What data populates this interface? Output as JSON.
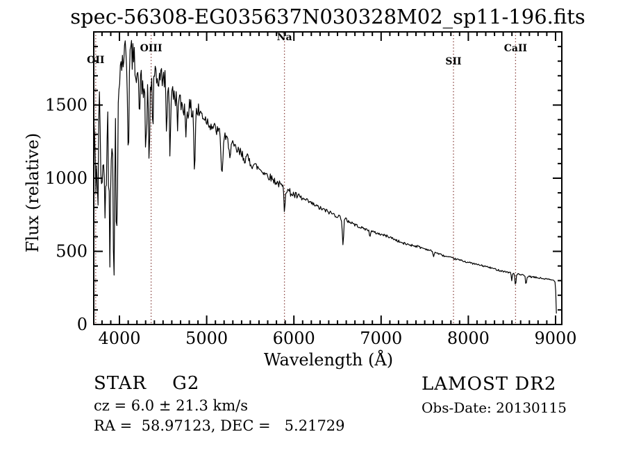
{
  "page": {
    "background": "#ffffff",
    "foreground": "#000000"
  },
  "chart_data": {
    "type": "line",
    "title": "spec-56308-EG035637N030328M02_sp11-196.fits",
    "xlabel": "Wavelength (Å)",
    "ylabel": "Flux (relative)",
    "xlim": [
      3705,
      9072
    ],
    "ylim": [
      0,
      2000
    ],
    "grid": false,
    "legend": "none",
    "line_color": "#000000",
    "marker_line_color": "#8b4743",
    "xticks_major": [
      4000,
      5000,
      6000,
      7000,
      8000,
      9000
    ],
    "xtick_labels": [
      "4000",
      "5000",
      "6000",
      "7000",
      "8000",
      "9000"
    ],
    "xticks_minor_step": 100,
    "yticks_major": [
      500,
      1000,
      1500
    ],
    "ytick_labeled": [
      0,
      500,
      1000,
      1500
    ],
    "ytick_labels": [
      "0",
      "500",
      "1000",
      "1500"
    ],
    "yticks_minor_step": 100,
    "spectral_markers": [
      {
        "label": "OII",
        "wavelength": 3727,
        "label_y": 91
      },
      {
        "label": "OIII",
        "wavelength": 4363,
        "label_y": 74
      },
      {
        "label": "Na",
        "wavelength": 5892,
        "label_y": 58
      },
      {
        "label": "SII",
        "wavelength": 7830,
        "label_y": 93
      },
      {
        "label": "CaII",
        "wavelength": 8542,
        "label_y": 74
      }
    ],
    "series": {
      "name": "flux",
      "start": 3706,
      "end": 9014,
      "step": 8,
      "clip_max": 1998,
      "clip_min": 6,
      "noise_seed": 42,
      "continuum_anchors": [
        [
          3706,
          1350
        ],
        [
          3760,
          1420
        ],
        [
          3810,
          1300
        ],
        [
          3870,
          1280
        ],
        [
          3920,
          1520
        ],
        [
          3990,
          1720
        ],
        [
          4060,
          1860
        ],
        [
          4130,
          1860
        ],
        [
          4200,
          1750
        ],
        [
          4260,
          1620
        ],
        [
          4330,
          1630
        ],
        [
          4420,
          1660
        ],
        [
          4470,
          1700
        ],
        [
          4540,
          1660
        ],
        [
          4620,
          1560
        ],
        [
          4700,
          1510
        ],
        [
          4800,
          1470
        ],
        [
          4920,
          1450
        ],
        [
          5040,
          1370
        ],
        [
          5160,
          1300
        ],
        [
          5290,
          1220
        ],
        [
          5420,
          1150
        ],
        [
          5560,
          1085
        ],
        [
          5700,
          1020
        ],
        [
          5860,
          945
        ],
        [
          6000,
          885
        ],
        [
          6150,
          845
        ],
        [
          6300,
          795
        ],
        [
          6450,
          755
        ],
        [
          6600,
          715
        ],
        [
          6760,
          665
        ],
        [
          6920,
          630
        ],
        [
          7090,
          600
        ],
        [
          7250,
          555
        ],
        [
          7410,
          535
        ],
        [
          7570,
          505
        ],
        [
          7730,
          467
        ],
        [
          7890,
          442
        ],
        [
          8050,
          417
        ],
        [
          8210,
          395
        ],
        [
          8370,
          368
        ],
        [
          8540,
          347
        ],
        [
          8700,
          327
        ],
        [
          8860,
          314
        ],
        [
          8975,
          302
        ],
        [
          9000,
          292
        ],
        [
          9006,
          120
        ],
        [
          9014,
          25
        ]
      ],
      "absorption_lines": [
        [
          3727,
          700,
          5
        ],
        [
          3750,
          820,
          6
        ],
        [
          3797,
          700,
          7
        ],
        [
          3835,
          620,
          7
        ],
        [
          3889,
          640,
          8
        ],
        [
          3933,
          430,
          9
        ],
        [
          3968,
          480,
          9
        ],
        [
          4101,
          1230,
          8
        ],
        [
          4227,
          1380,
          5
        ],
        [
          4305,
          1180,
          9
        ],
        [
          4340,
          1090,
          6
        ],
        [
          4383,
          1330,
          5
        ],
        [
          4541,
          1220,
          5
        ],
        [
          4580,
          1090,
          5
        ],
        [
          4668,
          1380,
          5
        ],
        [
          4760,
          1300,
          6
        ],
        [
          4861,
          1040,
          7
        ],
        [
          5175,
          1005,
          9
        ],
        [
          5270,
          1150,
          6
        ],
        [
          5892,
          780,
          6
        ],
        [
          6563,
          537,
          7
        ],
        [
          6870,
          598,
          5
        ],
        [
          7600,
          462,
          6
        ],
        [
          8498,
          300,
          5
        ],
        [
          8542,
          266,
          6
        ],
        [
          8662,
          268,
          6
        ]
      ],
      "noise_regions": [
        [
          3700,
          3990,
          270
        ],
        [
          3990,
          4450,
          110
        ],
        [
          4450,
          4950,
          70
        ],
        [
          4950,
          5550,
          42
        ],
        [
          5550,
          6100,
          26
        ],
        [
          6100,
          6700,
          15
        ],
        [
          6700,
          7500,
          9
        ],
        [
          7500,
          9020,
          6
        ]
      ]
    }
  },
  "annotations": {
    "star_class": "STAR    G2",
    "cz": "cz = 6.0 ± 21.3 km/s",
    "radec": "RA =  58.97123, DEC =   5.21729",
    "survey": "LAMOST DR2",
    "obs_date": "Obs-Date: 20130115"
  }
}
